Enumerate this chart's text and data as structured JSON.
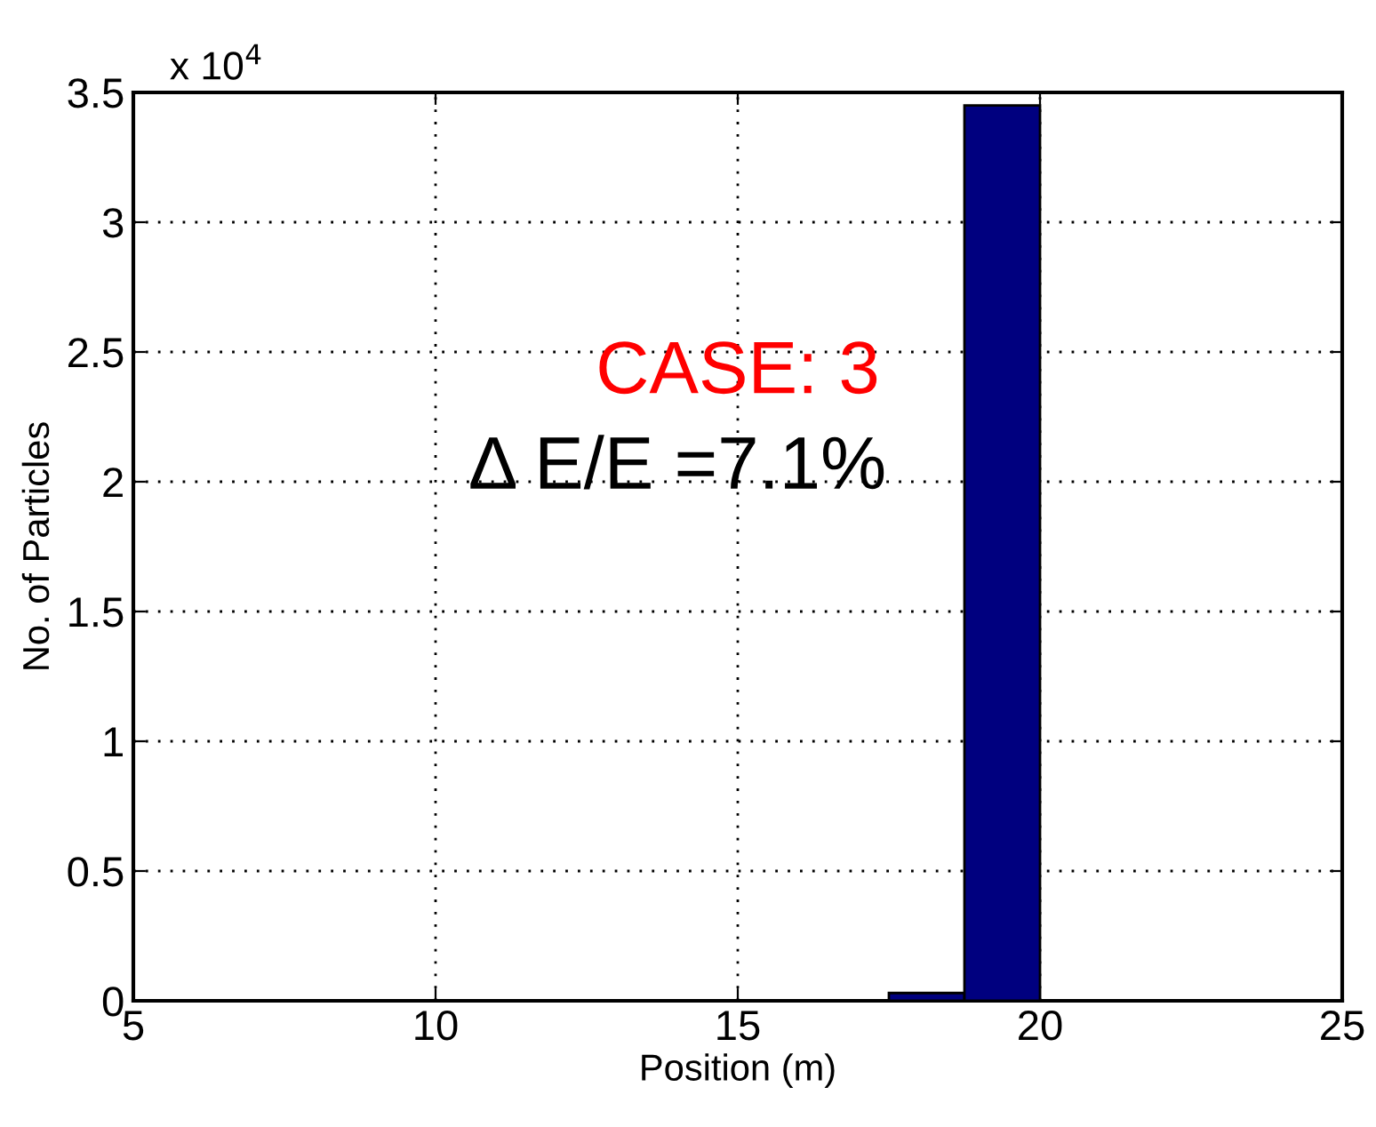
{
  "chart_data": {
    "type": "histogram",
    "xlabel": "Position (m)",
    "ylabel": "No. of Particles",
    "bins": [
      17.5,
      18.75,
      20.0
    ],
    "values": [
      0.03,
      3.45
    ],
    "color": "#00007f",
    "xlim": [
      5,
      25
    ],
    "xticks": [
      5,
      10,
      15,
      20,
      25
    ],
    "ylim": [
      0,
      3.5
    ],
    "yticks": [
      0,
      0.5,
      1,
      1.5,
      2,
      2.5,
      3,
      3.5
    ],
    "grid": true,
    "annotations": [
      "x 10$^{4}$",
      "CASE: 3",
      "Δ E/E =7.1%"
    ]
  }
}
